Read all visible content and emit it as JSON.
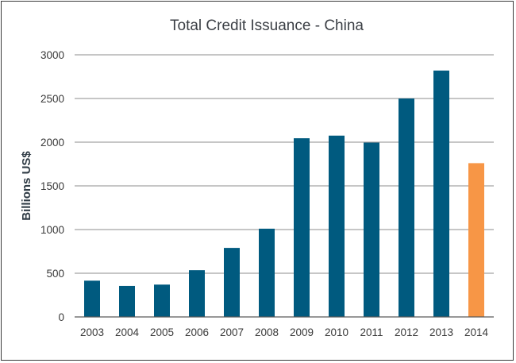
{
  "chart_data": {
    "type": "bar",
    "title": "Total Credit Issuance - China",
    "xlabel": "",
    "ylabel": "Billions US$",
    "categories": [
      "2003",
      "2004",
      "2005",
      "2006",
      "2007",
      "2008",
      "2009",
      "2010",
      "2011",
      "2012",
      "2013",
      "2014"
    ],
    "values": [
      415,
      355,
      370,
      535,
      790,
      1010,
      2045,
      2075,
      1995,
      2500,
      2820,
      1760
    ],
    "ylim": [
      0,
      3000
    ],
    "yticks": [
      0,
      500,
      1000,
      1500,
      2000,
      2500,
      3000
    ],
    "grid": true,
    "legend": "none",
    "colors": {
      "bar": "#005a7f",
      "highlight": "#f79646",
      "grid": "#8c8c8c",
      "axis": "#5a5a5a"
    },
    "highlight_index": 11
  }
}
